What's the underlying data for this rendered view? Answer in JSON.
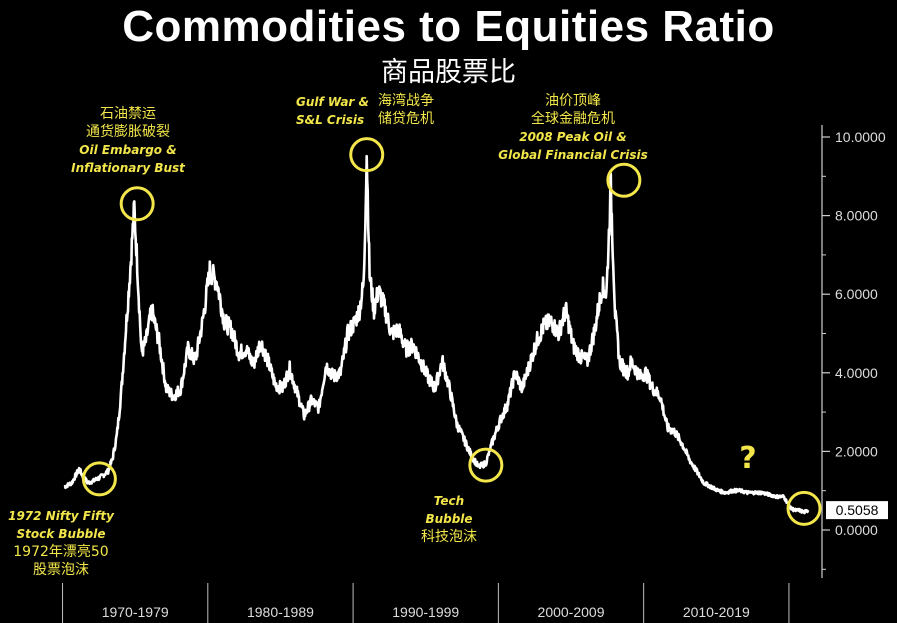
{
  "chart_data": {
    "type": "line",
    "title": "Commodities to Equities Ratio",
    "subtitle": "商品股票比",
    "xlabel": "",
    "ylabel": "",
    "x_range": [
      1969.0,
      2022.0
    ],
    "ylim": [
      -1.3,
      10.3
    ],
    "y_ticks": [
      "10.0000",
      "8.0000",
      "6.0000",
      "4.0000",
      "2.0000",
      "0.0000"
    ],
    "x_categories": [
      "1970-1979",
      "1980-1989",
      "1990-1999",
      "2000-2009",
      "2010-2019"
    ],
    "last_value_label": "0.5058",
    "grid": false,
    "series": [
      {
        "x": [
          1970.0,
          1970.5,
          1971.0,
          1971.3,
          1971.6,
          1972.0,
          1972.5,
          1973.0,
          1973.3,
          1973.6,
          1973.9,
          1974.2,
          1974.5,
          1974.8,
          1975.0,
          1975.3,
          1975.6,
          1976.0,
          1976.5,
          1977.0,
          1977.5,
          1978.0,
          1978.5,
          1979.0,
          1979.5,
          1980.0,
          1980.5,
          1981.0,
          1981.5,
          1982.0,
          1982.5,
          1983.0,
          1983.5,
          1984.0,
          1984.5,
          1985.0,
          1985.5,
          1986.0,
          1986.5,
          1987.0,
          1987.5,
          1988.0,
          1988.5,
          1989.0,
          1989.5,
          1990.0,
          1990.3,
          1990.6,
          1990.8,
          1991.0,
          1991.3,
          1991.6,
          1992.0,
          1992.5,
          1993.0,
          1993.5,
          1994.0,
          1994.5,
          1995.0,
          1995.5,
          1996.0,
          1996.5,
          1997.0,
          1997.5,
          1998.0,
          1998.5,
          1999.0,
          1999.5,
          2000.0,
          2000.5,
          2001.0,
          2001.5,
          2002.0,
          2002.5,
          2003.0,
          2003.5,
          2004.0,
          2004.5,
          2005.0,
          2005.5,
          2006.0,
          2006.5,
          2007.0,
          2007.3,
          2007.6,
          2007.9,
          2008.2,
          2008.5,
          2008.8,
          2009.0,
          2009.3,
          2009.6,
          2010.0,
          2010.5,
          2011.0,
          2011.5,
          2012.0,
          2012.5,
          2013.0,
          2013.5,
          2014.0,
          2014.5,
          2015.0,
          2015.5,
          2016.0,
          2016.5,
          2017.0,
          2017.5,
          2018.0,
          2018.5,
          2019.0,
          2019.5,
          2020.0,
          2020.3,
          2020.6,
          2020.9,
          2021.2
        ],
        "y": [
          1.1,
          1.2,
          1.55,
          1.35,
          1.2,
          1.25,
          1.35,
          1.5,
          1.8,
          2.4,
          3.5,
          5.0,
          6.5,
          8.2,
          6.8,
          4.5,
          4.8,
          5.6,
          4.8,
          3.6,
          3.4,
          3.6,
          4.6,
          4.3,
          5.3,
          6.6,
          6.3,
          5.3,
          5.1,
          4.5,
          4.6,
          4.2,
          4.8,
          4.3,
          3.7,
          3.6,
          4.1,
          3.5,
          2.9,
          3.3,
          3.1,
          4.2,
          3.9,
          4.0,
          5.0,
          5.3,
          5.6,
          6.3,
          9.6,
          6.5,
          5.6,
          6.1,
          5.7,
          5.0,
          5.1,
          4.6,
          4.7,
          4.3,
          3.9,
          3.6,
          4.3,
          3.6,
          2.7,
          2.3,
          1.9,
          1.6,
          1.7,
          2.3,
          2.8,
          3.2,
          4.0,
          3.6,
          4.2,
          4.8,
          5.2,
          5.3,
          5.0,
          5.6,
          4.7,
          4.4,
          4.3,
          5.1,
          6.2,
          6.0,
          8.7,
          5.5,
          4.3,
          4.1,
          4.0,
          4.3,
          4.1,
          3.9,
          4.0,
          3.6,
          3.4,
          2.6,
          2.5,
          2.2,
          1.8,
          1.5,
          1.2,
          1.1,
          1.0,
          0.95,
          1.0,
          1.0,
          0.95,
          0.95,
          0.95,
          0.9,
          0.85,
          0.85,
          0.55,
          0.5,
          0.5,
          0.45,
          0.5058
        ]
      }
    ],
    "highlights": [
      {
        "x": 1972.4,
        "y": 1.3
      },
      {
        "x": 1975.0,
        "y": 8.3
      },
      {
        "x": 1990.8,
        "y": 9.55
      },
      {
        "x": 1999.0,
        "y": 1.65
      },
      {
        "x": 2008.5,
        "y": 8.9
      },
      {
        "x": 2020.9,
        "y": 0.55
      }
    ],
    "annotations": {
      "nifty": {
        "en1": "1972 Nifty Fifty",
        "en2": "Stock Bubble",
        "cn1": "1972年漂亮50",
        "cn2": "股票泡沫"
      },
      "embargo": {
        "cn1": "石油禁运",
        "cn2": "通货膨胀破裂",
        "en1": "Oil Embargo &",
        "en2": "Inflationary Bust"
      },
      "gulf": {
        "en1": "Gulf War &",
        "en2": "S&L Crisis",
        "cn1": "海湾战争",
        "cn2": "储贷危机"
      },
      "tech": {
        "en1": "Tech",
        "en2": "Bubble",
        "cn1": "科技泡沫"
      },
      "oil": {
        "cn1": "油价顶峰",
        "cn2": "全球金融危机",
        "en1": "2008 Peak Oil &",
        "en2": "Global Financial Crisis"
      },
      "question": "?"
    },
    "colors": {
      "background": "#000000",
      "line": "#ffffff",
      "highlight": "#f2e64a"
    }
  }
}
